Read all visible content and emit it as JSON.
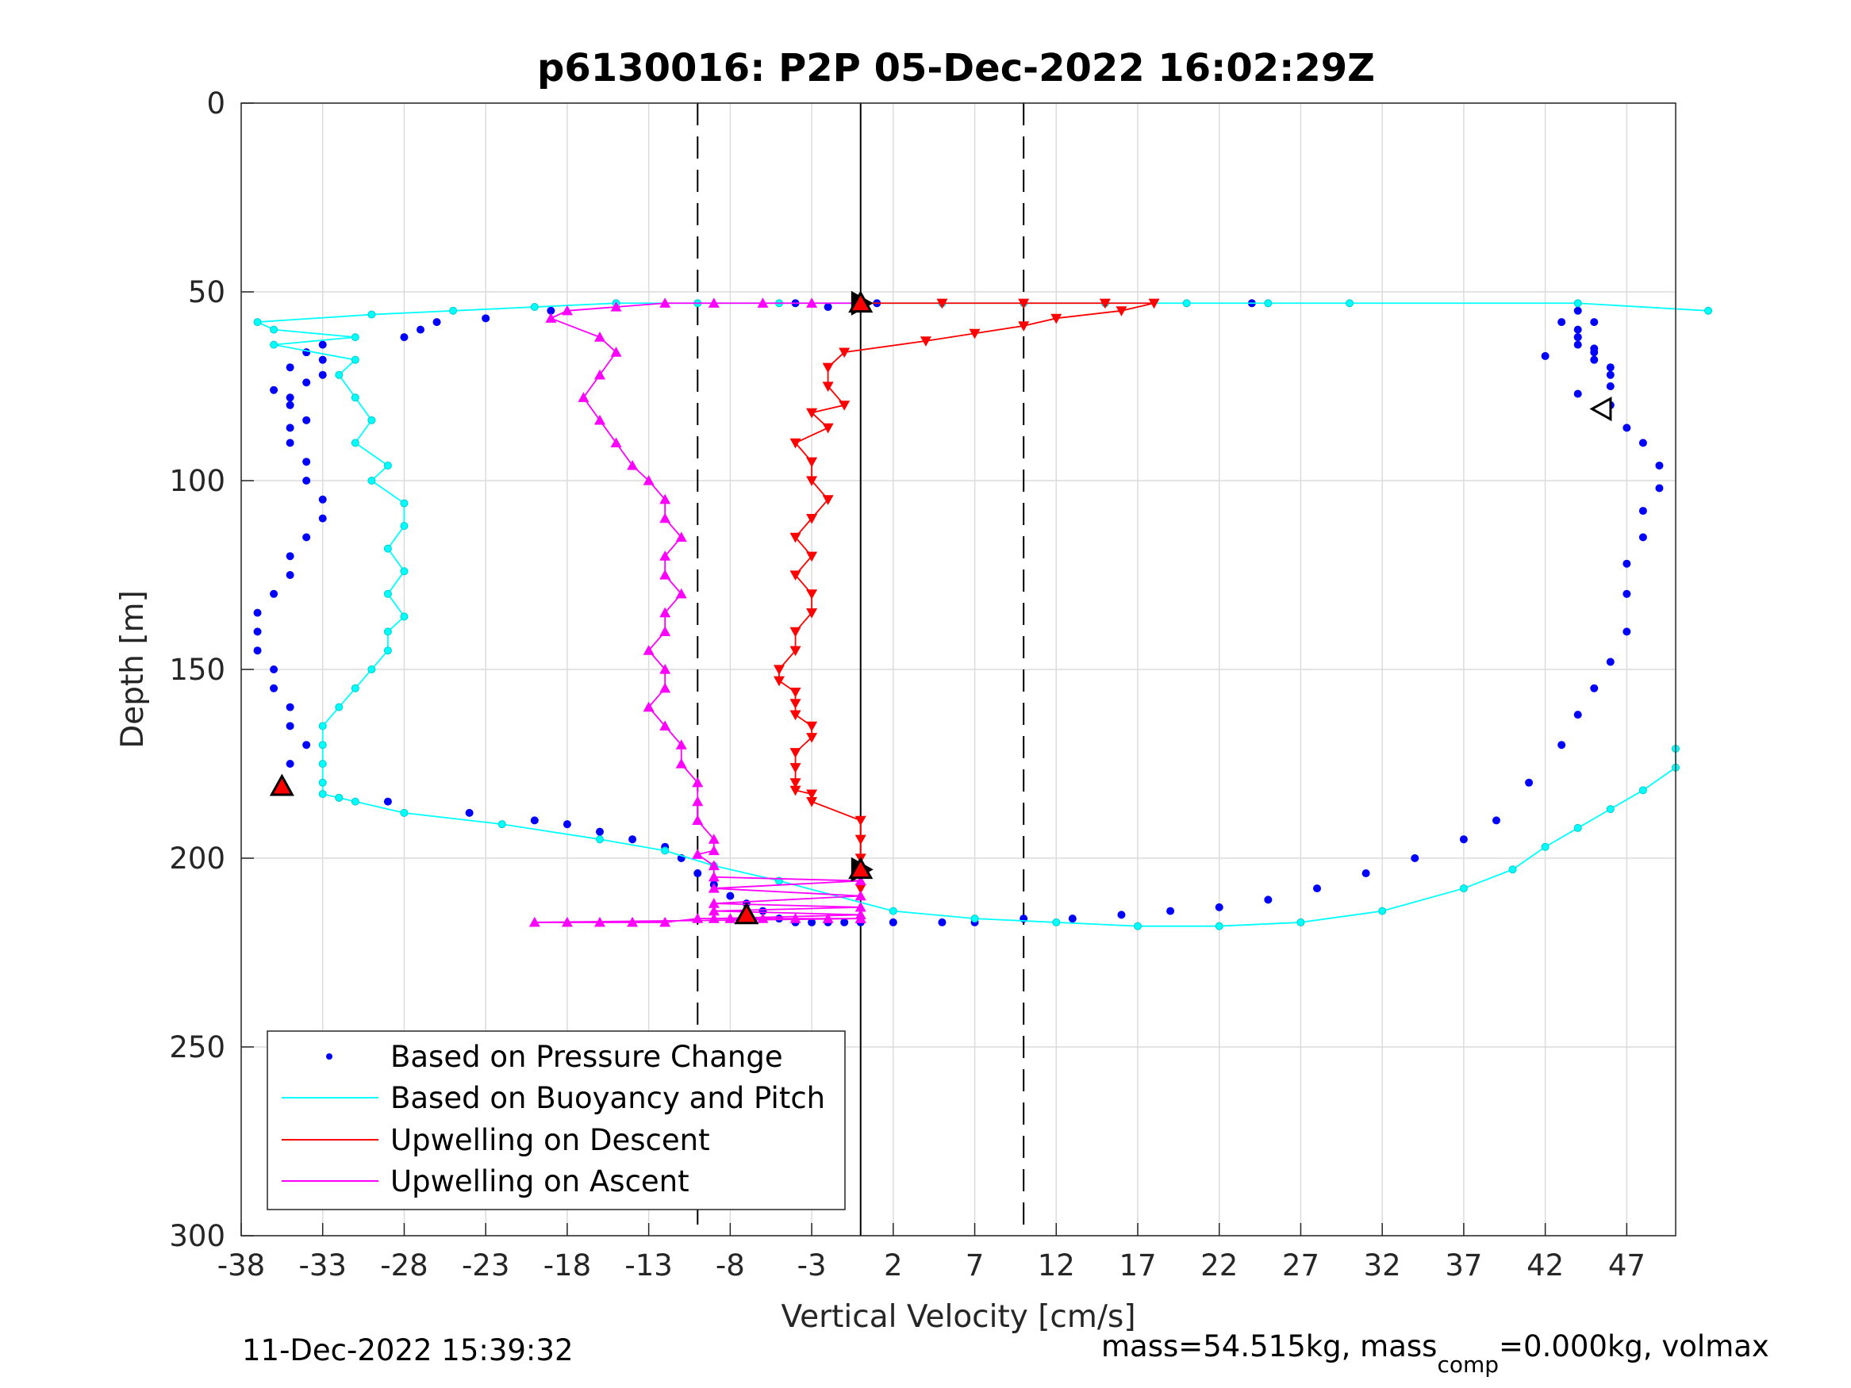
{
  "chart_data": {
    "type": "scatter",
    "title": "p6130016: P2P 05-Dec-2022 16:02:29Z",
    "xlabel": "Vertical Velocity [cm/s]",
    "ylabel": "Depth [m]",
    "xlim": [
      -38,
      50
    ],
    "ylim": [
      0,
      300
    ],
    "y_reversed": true,
    "grid": true,
    "xticks": [
      -38,
      -33,
      -28,
      -23,
      -18,
      -13,
      -8,
      -3,
      2,
      7,
      12,
      17,
      22,
      27,
      32,
      37,
      42,
      47
    ],
    "yticks": [
      0,
      50,
      100,
      150,
      200,
      250,
      300
    ],
    "reference_lines": [
      {
        "x": 0,
        "style": "solid",
        "color": "#000000"
      },
      {
        "x": -10,
        "style": "dashed",
        "color": "#000000"
      },
      {
        "x": 10,
        "style": "dashed",
        "color": "#000000"
      }
    ],
    "legend": {
      "placement": "bottom-left",
      "entries": [
        {
          "label": "Based on Pressure Change",
          "color": "#0000ff",
          "marker": "dot"
        },
        {
          "label": "Based on Buoyancy and Pitch",
          "color": "#00ffff",
          "marker": "line"
        },
        {
          "label": "Upwelling on Descent",
          "color": "#ff0000",
          "marker": "line"
        },
        {
          "label": "Upwelling on Ascent",
          "color": "#ff00ff",
          "marker": "line"
        }
      ]
    },
    "series": [
      {
        "name": "Based on Pressure Change",
        "color": "#0000ff",
        "style": "dots",
        "x": [
          24,
          1,
          -4,
          -2,
          -19,
          -23,
          -26,
          -27,
          -28,
          -33,
          -34,
          -33,
          -35,
          -33,
          -34,
          -36,
          -35,
          -35,
          -34,
          -35,
          -35,
          -34,
          -34,
          -33,
          -33,
          -34,
          -35,
          -35,
          -36,
          -37,
          -37,
          -37,
          -36,
          -36,
          -35,
          -35,
          -34,
          -35,
          -29,
          -24,
          -20,
          -18,
          -16,
          -14,
          -12,
          -11,
          -10,
          -9,
          -8,
          -7,
          -6,
          -5,
          -4,
          -3,
          -2,
          -1,
          0,
          2,
          5,
          7,
          10,
          13,
          16,
          19,
          22,
          25,
          28,
          31,
          34,
          37,
          39,
          41,
          43,
          44,
          45,
          46,
          47,
          47,
          47,
          48,
          48,
          49,
          49,
          48,
          47,
          46,
          46,
          46,
          46,
          45,
          45,
          44,
          44,
          44,
          43,
          42,
          44,
          45,
          44,
          45,
          44
        ],
        "y": [
          53,
          53,
          53,
          54,
          55,
          57,
          58,
          60,
          62,
          64,
          66,
          68,
          70,
          72,
          74,
          76,
          78,
          80,
          84,
          86,
          90,
          95,
          100,
          105,
          110,
          115,
          120,
          125,
          130,
          135,
          140,
          145,
          150,
          155,
          160,
          165,
          170,
          175,
          185,
          188,
          190,
          191,
          193,
          195,
          197,
          200,
          204,
          207,
          210,
          212,
          214,
          216,
          217,
          217,
          217,
          217,
          217,
          217,
          217,
          217,
          216,
          216,
          215,
          214,
          213,
          211,
          208,
          204,
          200,
          195,
          190,
          180,
          170,
          162,
          155,
          148,
          140,
          130,
          122,
          115,
          108,
          102,
          96,
          90,
          86,
          80,
          75,
          72,
          70,
          68,
          66,
          64,
          62,
          60,
          58,
          67,
          55,
          58,
          62,
          65,
          77
        ]
      },
      {
        "name": "Based on Buoyancy and Pitch",
        "color": "#00ffff",
        "style": "line-dots",
        "x": [
          52,
          44,
          30,
          25,
          20,
          15,
          10,
          5,
          0,
          -5,
          -10,
          -15,
          -20,
          -25,
          -30,
          -37,
          -36,
          -31,
          -36,
          -31,
          -32,
          -31,
          -30,
          -31,
          -29,
          -30,
          -28,
          -28,
          -29,
          -28,
          -29,
          -28,
          -29,
          -29,
          -30,
          -31,
          -32,
          -33,
          -33,
          -33,
          -33,
          -33,
          -32,
          -32,
          -31,
          -28,
          -22,
          -16,
          -12,
          -9,
          -5,
          2,
          7,
          12,
          17,
          22,
          27,
          32,
          37,
          40,
          42,
          44,
          46,
          48,
          50,
          50
        ],
        "y": [
          55,
          53,
          53,
          53,
          53,
          53,
          53,
          53,
          53,
          53,
          53,
          53,
          54,
          55,
          56,
          58,
          60,
          62,
          64,
          68,
          72,
          78,
          84,
          90,
          96,
          100,
          106,
          112,
          118,
          124,
          130,
          136,
          140,
          145,
          150,
          155,
          160,
          165,
          170,
          175,
          180,
          183,
          184,
          184,
          185,
          188,
          191,
          195,
          198,
          202,
          206,
          214,
          216,
          217,
          218,
          218,
          217,
          214,
          208,
          203,
          197,
          192,
          187,
          182,
          176,
          171
        ]
      },
      {
        "name": "Upwelling on Descent",
        "color": "#ff0000",
        "style": "line-down-triangles",
        "x": [
          0,
          5,
          10,
          15,
          18,
          16,
          12,
          10,
          7,
          4,
          -1,
          -2,
          -2,
          -1,
          -3,
          -2,
          -4,
          -3,
          -3,
          -2,
          -3,
          -4,
          -3,
          -4,
          -3,
          -3,
          -4,
          -4,
          -5,
          -5,
          -4,
          -4,
          -4,
          -3,
          -3,
          -4,
          -4,
          -4,
          -4,
          -3,
          -3,
          0,
          0,
          0,
          0,
          0
        ],
        "y": [
          53,
          53,
          53,
          53,
          53,
          55,
          57,
          59,
          61,
          63,
          66,
          70,
          75,
          80,
          82,
          86,
          90,
          95,
          100,
          105,
          110,
          115,
          120,
          125,
          130,
          135,
          140,
          145,
          150,
          153,
          156,
          159,
          162,
          165,
          168,
          172,
          176,
          180,
          182,
          183,
          185,
          190,
          195,
          200,
          204,
          208
        ]
      },
      {
        "name": "Upwelling on Ascent",
        "color": "#ff00ff",
        "style": "line-up-triangles",
        "x": [
          0,
          -3,
          -6,
          -9,
          -12,
          -15,
          -18,
          -19,
          -16,
          -15,
          -16,
          -17,
          -16,
          -15,
          -14,
          -13,
          -12,
          -12,
          -11,
          -12,
          -12,
          -11,
          -12,
          -12,
          -13,
          -12,
          -12,
          -13,
          -12,
          -11,
          -11,
          -10,
          -10,
          -10,
          -9,
          -9,
          -10,
          -9,
          -9,
          0,
          -9,
          0,
          -9,
          0,
          -9,
          0,
          -9,
          0,
          -20,
          -18,
          -16,
          -14,
          -12,
          -10,
          -8,
          -6,
          -4,
          -2,
          0
        ],
        "y": [
          53,
          53,
          53,
          53,
          53,
          54,
          55,
          57,
          62,
          66,
          72,
          78,
          84,
          90,
          96,
          100,
          105,
          110,
          115,
          120,
          125,
          130,
          135,
          140,
          145,
          150,
          155,
          160,
          165,
          170,
          175,
          180,
          185,
          190,
          195,
          198,
          199,
          202,
          205,
          206,
          208,
          210,
          212,
          213,
          214,
          215,
          216,
          216,
          217,
          217,
          217,
          217,
          217,
          216,
          216,
          216,
          216,
          216,
          216
        ]
      }
    ],
    "markers": [
      {
        "x": 0,
        "y": 53,
        "shape": "triangle-right",
        "fill": "#000000"
      },
      {
        "x": 0,
        "y": 53,
        "shape": "triangle-up",
        "fill": "#ff0000"
      },
      {
        "x": 0,
        "y": 203,
        "shape": "triangle-right",
        "fill": "#000000"
      },
      {
        "x": 0,
        "y": 203,
        "shape": "triangle-up",
        "fill": "#ff0000"
      },
      {
        "x": 45.5,
        "y": 81,
        "shape": "triangle-left",
        "fill": "#ffffff"
      },
      {
        "x": -35.5,
        "y": 181,
        "shape": "triangle-up",
        "fill": "#ff0000"
      },
      {
        "x": -7,
        "y": 215,
        "shape": "triangle-up",
        "fill": "#ff0000"
      }
    ]
  },
  "footer": {
    "timestamp": "11-Dec-2022 15:39:32",
    "mass_text_1": "mass=54.515kg, mass",
    "mass_sub": "comp",
    "mass_text_2": "=0.000kg, volmax"
  }
}
